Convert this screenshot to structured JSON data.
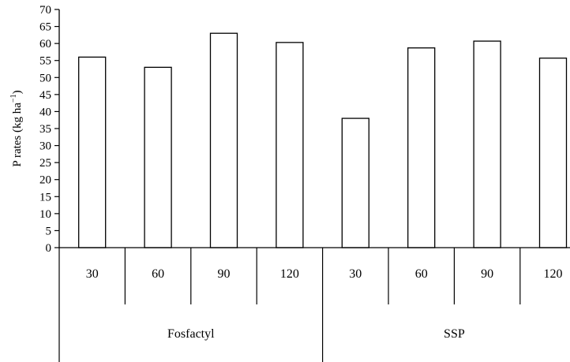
{
  "chart_data": {
    "type": "bar",
    "ylabel_main": "P rates (kg ha",
    "ylabel_sup": "−1",
    "ylabel_close": ")",
    "ylim": [
      0,
      70
    ],
    "yticks": [
      0,
      5,
      10,
      15,
      20,
      25,
      30,
      35,
      40,
      45,
      50,
      55,
      60,
      65,
      70
    ],
    "grid": false,
    "legend": "none",
    "categories": [
      "30",
      "60",
      "90",
      "120",
      "30",
      "60",
      "90",
      "120"
    ],
    "values": [
      56,
      53,
      63,
      60.3,
      38,
      58.7,
      60.7,
      55.7
    ],
    "groups": [
      {
        "name": "Fosfactyl",
        "start": 0,
        "count": 4
      },
      {
        "name": "SSP",
        "start": 4,
        "count": 4
      }
    ],
    "bar_fill": "#ffffff",
    "bar_stroke": "#000000"
  }
}
